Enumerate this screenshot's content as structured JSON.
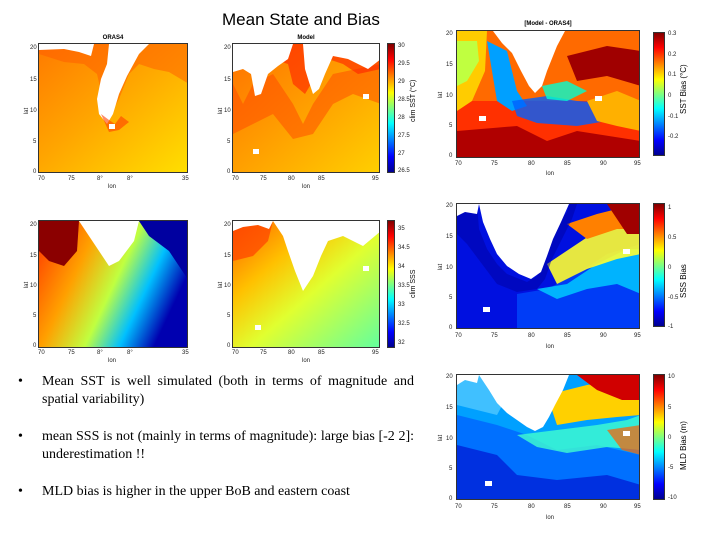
{
  "slide_title": "Mean State and Bias",
  "panels": {
    "sst_oras4": {
      "title": "ORAS4",
      "xticks": [
        "70",
        "75",
        "8°",
        "8°",
        "35"
      ],
      "yticks": [
        "20",
        "15",
        "10",
        "5",
        "0"
      ],
      "xlabel": "lon",
      "ylabel": "lat"
    },
    "sst_model": {
      "title": "Model",
      "xticks": [
        "70",
        "75",
        "80",
        "85",
        "95"
      ],
      "yticks": [
        "20",
        "15",
        "10",
        "5",
        "0"
      ],
      "xlabel": "lon",
      "ylabel": "lat",
      "cbar_ticks": [
        "30",
        "29.5",
        "29",
        "28.5",
        "28",
        "27.5",
        "27",
        "26.5"
      ],
      "cbar_label": "clim SST (°C)"
    },
    "sss_oras4": {
      "xticks": [
        "70",
        "75",
        "8°",
        "8°",
        "35"
      ],
      "yticks": [
        "20",
        "15",
        "10",
        "5",
        "0"
      ],
      "xlabel": "lon",
      "ylabel": "lat"
    },
    "sss_model": {
      "xticks": [
        "70",
        "75",
        "80",
        "85",
        "95"
      ],
      "yticks": [
        "20",
        "15",
        "10",
        "5",
        "0"
      ],
      "xlabel": "lon",
      "ylabel": "lat",
      "cbar_ticks": [
        "35",
        "34.5",
        "34",
        "33.5",
        "33",
        "32.5",
        "32"
      ],
      "cbar_label": "clim SSS"
    },
    "sst_bias": {
      "title": "[Model - ORAS4]",
      "xticks": [
        "70",
        "75",
        "80",
        "85",
        "90",
        "95"
      ],
      "yticks": [
        "20",
        "15",
        "10",
        "5",
        "0"
      ],
      "xlabel": "lon",
      "ylabel": "lat",
      "cbar_ticks": [
        "0.3",
        "0.2",
        "0.1",
        "0",
        "-0.1",
        "-0.2"
      ],
      "cbar_label": "SST Bias (°C)"
    },
    "sss_bias": {
      "xticks": [
        "70",
        "75",
        "80",
        "85",
        "90",
        "95"
      ],
      "yticks": [
        "20",
        "15",
        "10",
        "5",
        "0"
      ],
      "xlabel": "lon",
      "ylabel": "lat",
      "cbar_ticks": [
        "1",
        "0.5",
        "0",
        "-0.5",
        "-1"
      ],
      "cbar_label": "SSS Bias"
    },
    "mld_bias": {
      "xticks": [
        "70",
        "75",
        "80",
        "85",
        "90",
        "95"
      ],
      "yticks": [
        "20",
        "15",
        "10",
        "5",
        "0"
      ],
      "xlabel": "lon",
      "ylabel": "lat",
      "cbar_ticks": [
        "10",
        "5",
        "0",
        "-5",
        "-10"
      ],
      "cbar_label": "MLD Bias (m)"
    }
  },
  "bullets": [
    "Mean SST is well simulated (both in terms of magnitude and spatial variability)",
    "mean SSS is not (mainly in terms of magnitude): large bias [-2 2]: underestimation !!",
    "MLD bias is higher in the upper BoB and eastern coast"
  ],
  "colors": {
    "jet_blue": "#00008f",
    "jet_cyan": "#00ffff",
    "jet_yellow": "#ffff00",
    "jet_red": "#800000"
  }
}
